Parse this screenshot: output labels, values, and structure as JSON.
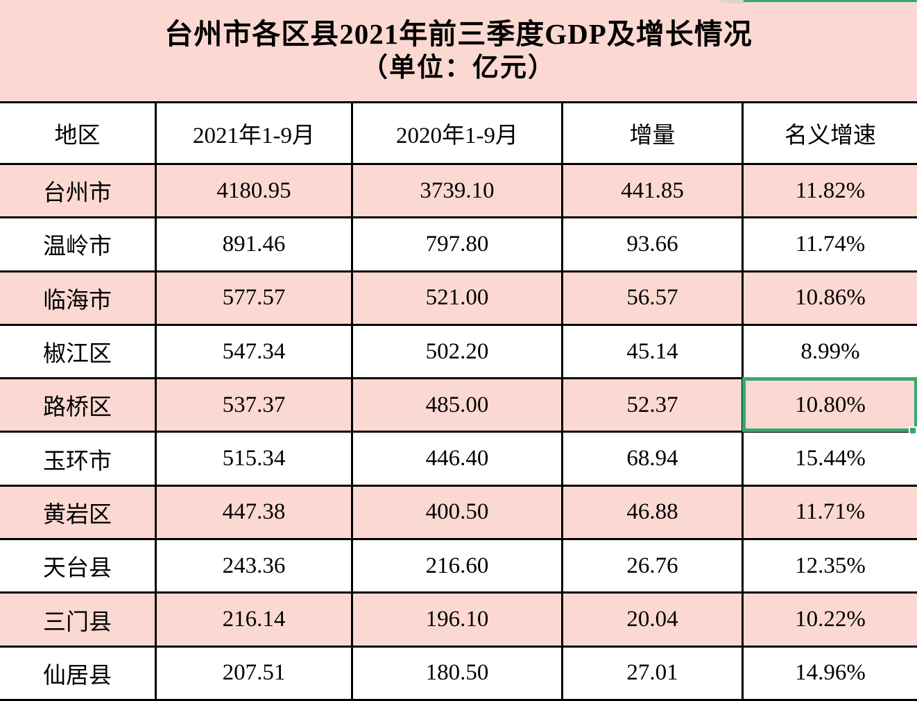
{
  "title": {
    "line1": "台州市各区县2021年前三季度GDP及增长情况",
    "line2": "（单位：亿元）"
  },
  "table": {
    "columns": [
      "地区",
      "2021年1-9月",
      "2020年1-9月",
      "增量",
      "名义增速"
    ],
    "rows": [
      {
        "region": "台州市",
        "gdp2021": "4180.95",
        "gdp2020": "3739.10",
        "increment": "441.85",
        "growth": "11.82%"
      },
      {
        "region": "温岭市",
        "gdp2021": "891.46",
        "gdp2020": "797.80",
        "increment": "93.66",
        "growth": "11.74%"
      },
      {
        "region": "临海市",
        "gdp2021": "577.57",
        "gdp2020": "521.00",
        "increment": "56.57",
        "growth": "10.86%"
      },
      {
        "region": "椒江区",
        "gdp2021": "547.34",
        "gdp2020": "502.20",
        "increment": "45.14",
        "growth": "8.99%"
      },
      {
        "region": "路桥区",
        "gdp2021": "537.37",
        "gdp2020": "485.00",
        "increment": "52.37",
        "growth": "10.80%"
      },
      {
        "region": "玉环市",
        "gdp2021": "515.34",
        "gdp2020": "446.40",
        "increment": "68.94",
        "growth": "15.44%"
      },
      {
        "region": "黄岩区",
        "gdp2021": "447.38",
        "gdp2020": "400.50",
        "increment": "46.88",
        "growth": "11.71%"
      },
      {
        "region": "天台县",
        "gdp2021": "243.36",
        "gdp2020": "216.60",
        "increment": "26.76",
        "growth": "12.35%"
      },
      {
        "region": "三门县",
        "gdp2021": "216.14",
        "gdp2020": "196.10",
        "increment": "20.04",
        "growth": "10.22%"
      },
      {
        "region": "仙居县",
        "gdp2021": "207.51",
        "gdp2020": "180.50",
        "increment": "27.01",
        "growth": "14.96%"
      }
    ]
  },
  "selection": {
    "selected_region": "路桥区",
    "selected_column": "名义增速",
    "selected_value": "10.80%"
  },
  "colors": {
    "row_highlight_pink": "#fbd9d2",
    "row_white": "#ffffff",
    "grid_line": "#000000",
    "selection_green": "#35a96e",
    "text": "#000000"
  }
}
